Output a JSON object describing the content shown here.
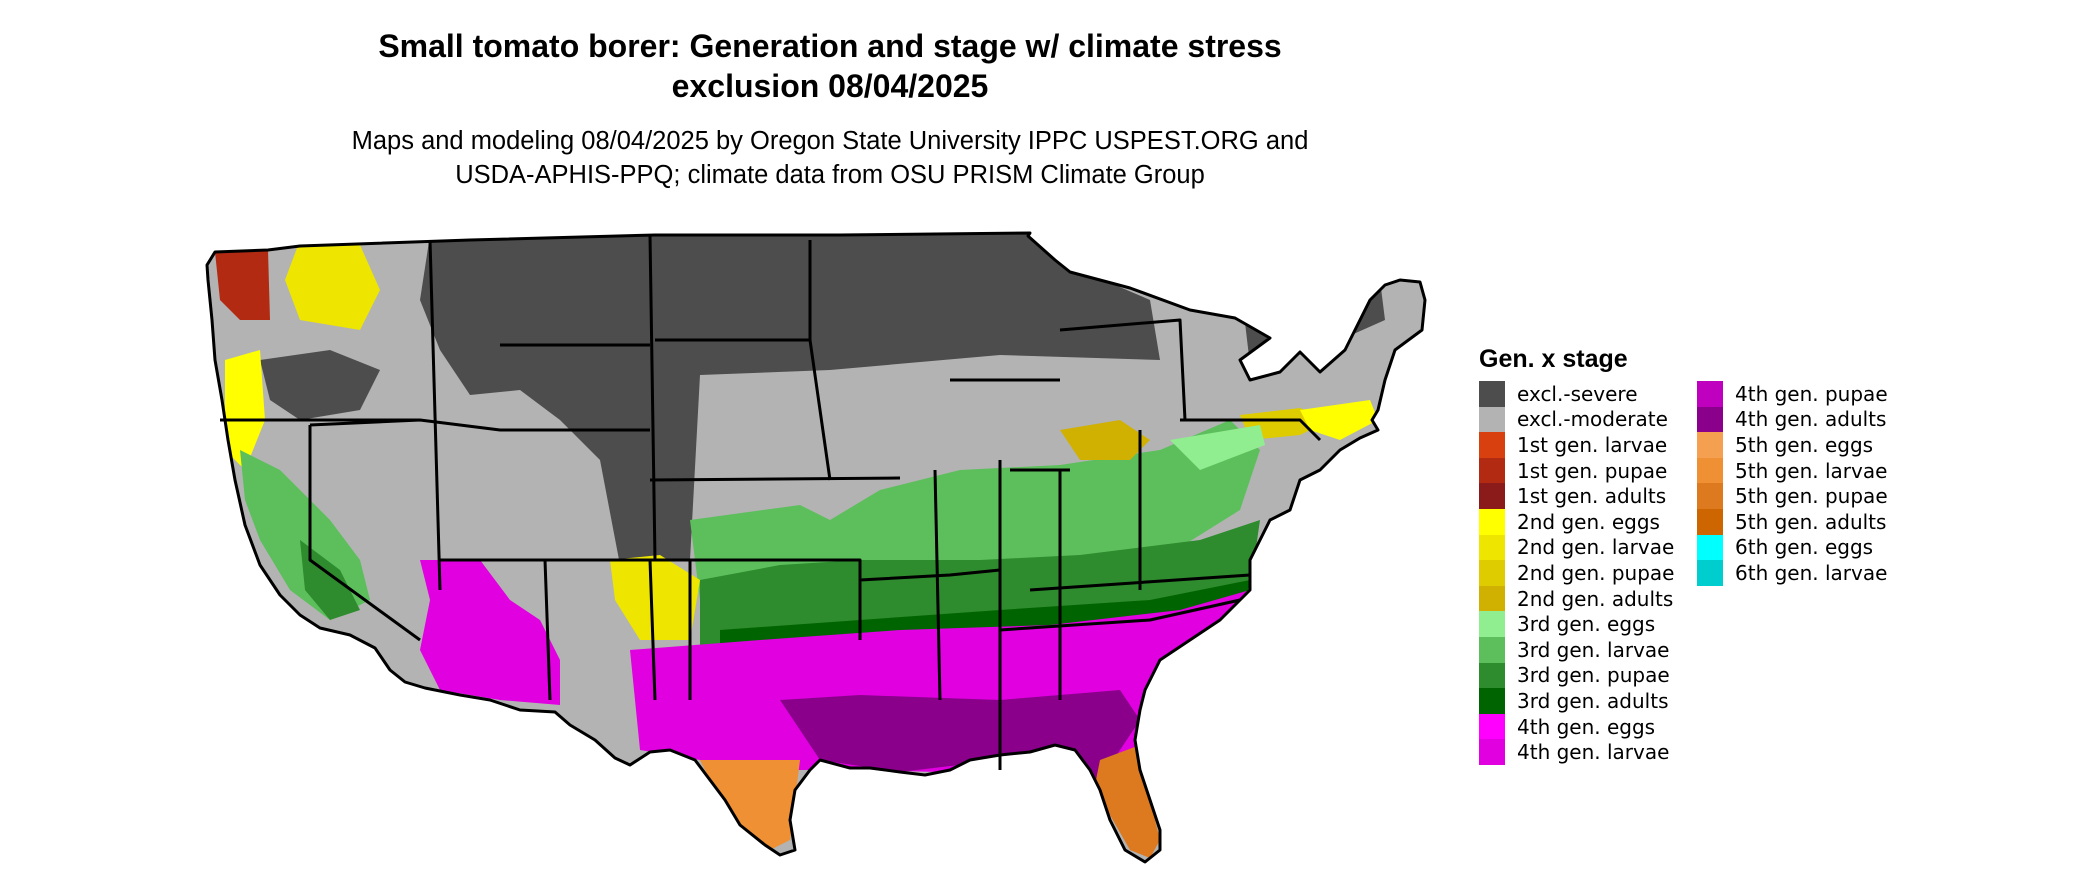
{
  "title_line1": "Small tomato borer: Generation and stage w/ climate stress",
  "title_line2": "exclusion 08/04/2025",
  "subtitle_line1": "Maps and modeling 08/04/2025 by Oregon State University IPPC USPEST.ORG and",
  "subtitle_line2": "USDA-APHIS-PPQ; climate data from OSU PRISM Climate Group",
  "legend": {
    "title": "Gen. x stage",
    "items": [
      {
        "label": "excl.-severe",
        "color": "#4d4d4d"
      },
      {
        "label": "excl.-moderate",
        "color": "#b3b3b3"
      },
      {
        "label": "1st gen. larvae",
        "color": "#d9400f"
      },
      {
        "label": "1st gen. pupae",
        "color": "#b22a12"
      },
      {
        "label": "1st gen. adults",
        "color": "#8b1a1a"
      },
      {
        "label": "2nd gen. eggs",
        "color": "#ffff00"
      },
      {
        "label": "2nd gen. larvae",
        "color": "#eee600"
      },
      {
        "label": "2nd gen. pupae",
        "color": "#dfcc00"
      },
      {
        "label": "2nd gen. adults",
        "color": "#d0b000"
      },
      {
        "label": "3rd gen. eggs",
        "color": "#90ee90"
      },
      {
        "label": "3rd gen. larvae",
        "color": "#5cbf5c"
      },
      {
        "label": "3rd gen. pupae",
        "color": "#2e8b2e"
      },
      {
        "label": "3rd gen. adults",
        "color": "#006400"
      },
      {
        "label": "4th gen. eggs",
        "color": "#ff00ff"
      },
      {
        "label": "4th gen. larvae",
        "color": "#e000e0"
      },
      {
        "label": "4th gen. pupae",
        "color": "#bf00bf"
      },
      {
        "label": "4th gen. adults",
        "color": "#8b008b"
      },
      {
        "label": "5th gen. eggs",
        "color": "#f5a050"
      },
      {
        "label": "5th gen. larvae",
        "color": "#ee9033"
      },
      {
        "label": "5th gen. pupae",
        "color": "#dd7a20"
      },
      {
        "label": "5th gen. adults",
        "color": "#cd6600"
      },
      {
        "label": "6th gen. eggs",
        "color": "#00ffff"
      },
      {
        "label": "6th gen. larvae",
        "color": "#00cdcd"
      }
    ]
  }
}
